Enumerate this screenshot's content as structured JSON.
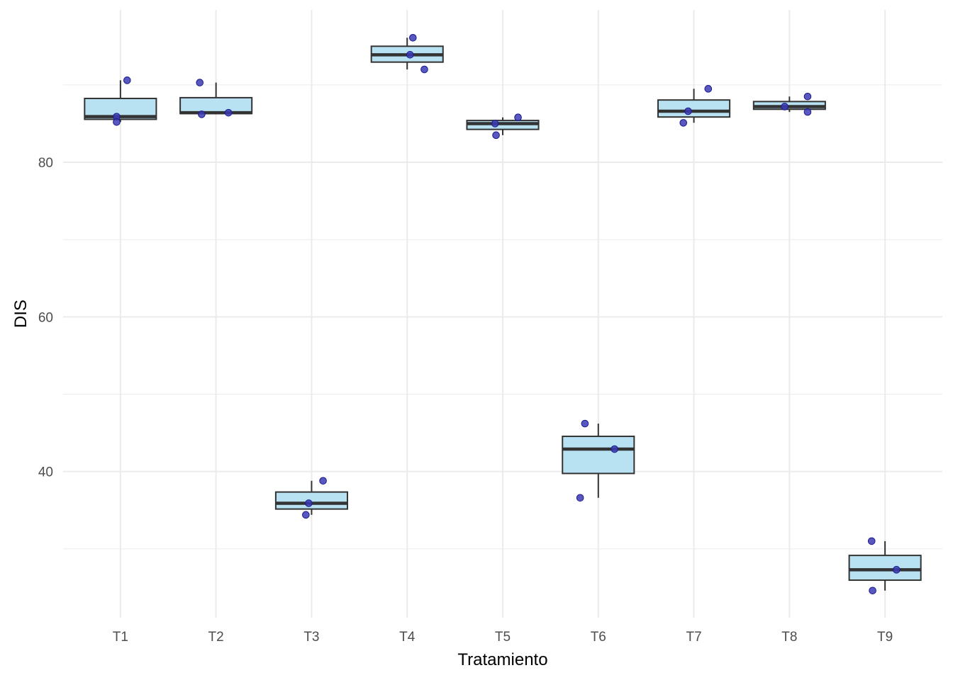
{
  "chart_data": {
    "type": "boxplot",
    "title": "",
    "xlabel": "Tratamiento",
    "ylabel": "DIS",
    "ylim": [
      21.1,
      99.7
    ],
    "yticks": [
      40,
      60,
      80
    ],
    "yminor": [
      30,
      50,
      70,
      90
    ],
    "grid": true,
    "legend": "none",
    "categories": [
      "T1",
      "T2",
      "T3",
      "T4",
      "T5",
      "T6",
      "T7",
      "T8",
      "T9"
    ],
    "points": [
      [
        90.6,
        85.9,
        85.2
      ],
      [
        90.3,
        86.2,
        86.4
      ],
      [
        38.8,
        35.9,
        34.4
      ],
      [
        96.1,
        93.9,
        92.0
      ],
      [
        85.8,
        85.0,
        83.5
      ],
      [
        46.2,
        42.9,
        36.6
      ],
      [
        89.5,
        86.6,
        85.1
      ],
      [
        88.5,
        87.2,
        86.5
      ],
      [
        31.0,
        27.3,
        24.6
      ]
    ],
    "colors": {
      "box_fill": "#b8e2f2",
      "box_stroke": "#333333",
      "point_fill": "#3b3bb5",
      "point_stroke": "#1a1a8c",
      "grid": "#ebebeb"
    }
  }
}
